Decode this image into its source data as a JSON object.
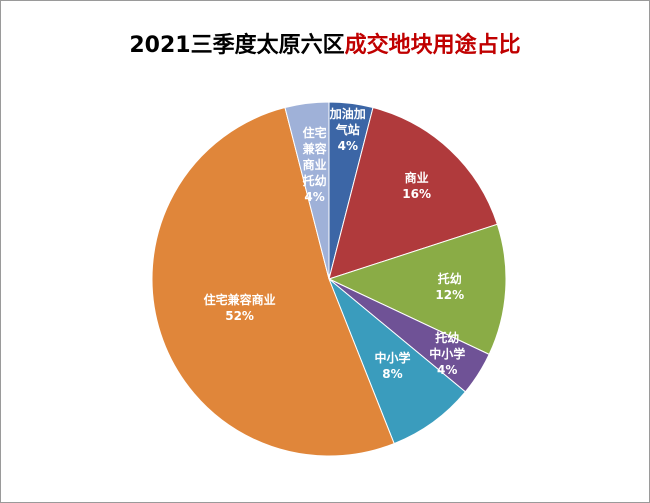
{
  "chart_data": {
    "type": "pie",
    "title": [
      "2021三季度太原六区",
      "成交地块用途占比"
    ],
    "title_colors": [
      "#000000",
      "#c00000"
    ],
    "categories": [
      "加油加\n气站",
      "商业",
      "托幼",
      "托幼\n中小学",
      "中小学",
      "住宅兼容商业",
      "住宅\n兼容\n商业\n托幼"
    ],
    "values": [
      4,
      16,
      12,
      4,
      8,
      52,
      4
    ],
    "value_labels": [
      "4%",
      "16%",
      "12%",
      "4%",
      "8%",
      "52%",
      "4%"
    ],
    "colors": [
      "#3c66a6",
      "#b03a3c",
      "#8aac46",
      "#6f5296",
      "#3a9cbd",
      "#e0863a",
      "#9fb1d8"
    ]
  }
}
